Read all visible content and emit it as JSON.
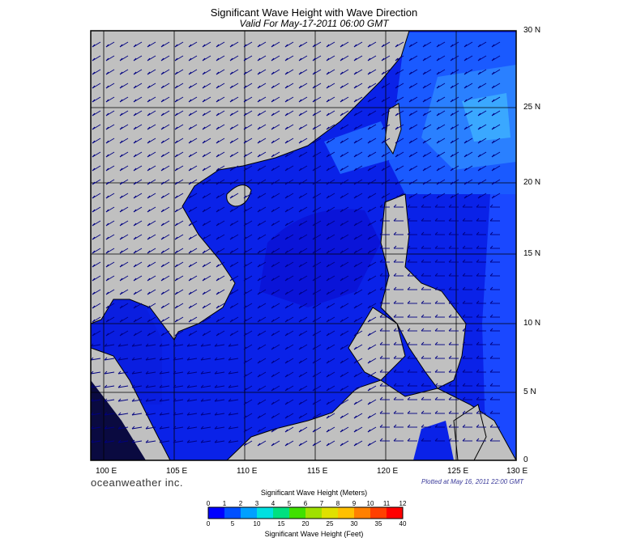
{
  "title": "Significant Wave Height with Wave Direction",
  "subtitle": "Valid For May-17-2011 06:00 GMT",
  "branding": "oceanweather inc.",
  "plotted_note": "Plotted at May 16, 2011 22:00 GMT",
  "map": {
    "lon_range": [
      99,
      130
    ],
    "lat_range": [
      0,
      30
    ],
    "lon_ticks": [
      "100 E",
      "105 E",
      "110 E",
      "115 E",
      "120 E",
      "125 E",
      "130 E"
    ],
    "lat_ticks": [
      "30 N",
      "25 N",
      "20 N",
      "15 N",
      "10 N",
      "5 N",
      "0"
    ],
    "land_color": "#c0c0c0",
    "arrow_color": "#000080"
  },
  "colorbar": {
    "title_meters": "Significant Wave Height (Meters)",
    "title_feet": "Significant Wave Height (Feet)",
    "meter_ticks": [
      "0",
      "1",
      "2",
      "3",
      "4",
      "5",
      "6",
      "7",
      "8",
      "9",
      "10",
      "11",
      "12"
    ],
    "feet_ticks": [
      "0",
      "5",
      "10",
      "15",
      "20",
      "25",
      "30",
      "35",
      "40"
    ],
    "colors": [
      "#0000ff",
      "#0050ff",
      "#00a0ff",
      "#00e0e0",
      "#00e080",
      "#40e000",
      "#a0e000",
      "#e0e000",
      "#ffc000",
      "#ff8000",
      "#ff4000",
      "#ff0000"
    ]
  }
}
